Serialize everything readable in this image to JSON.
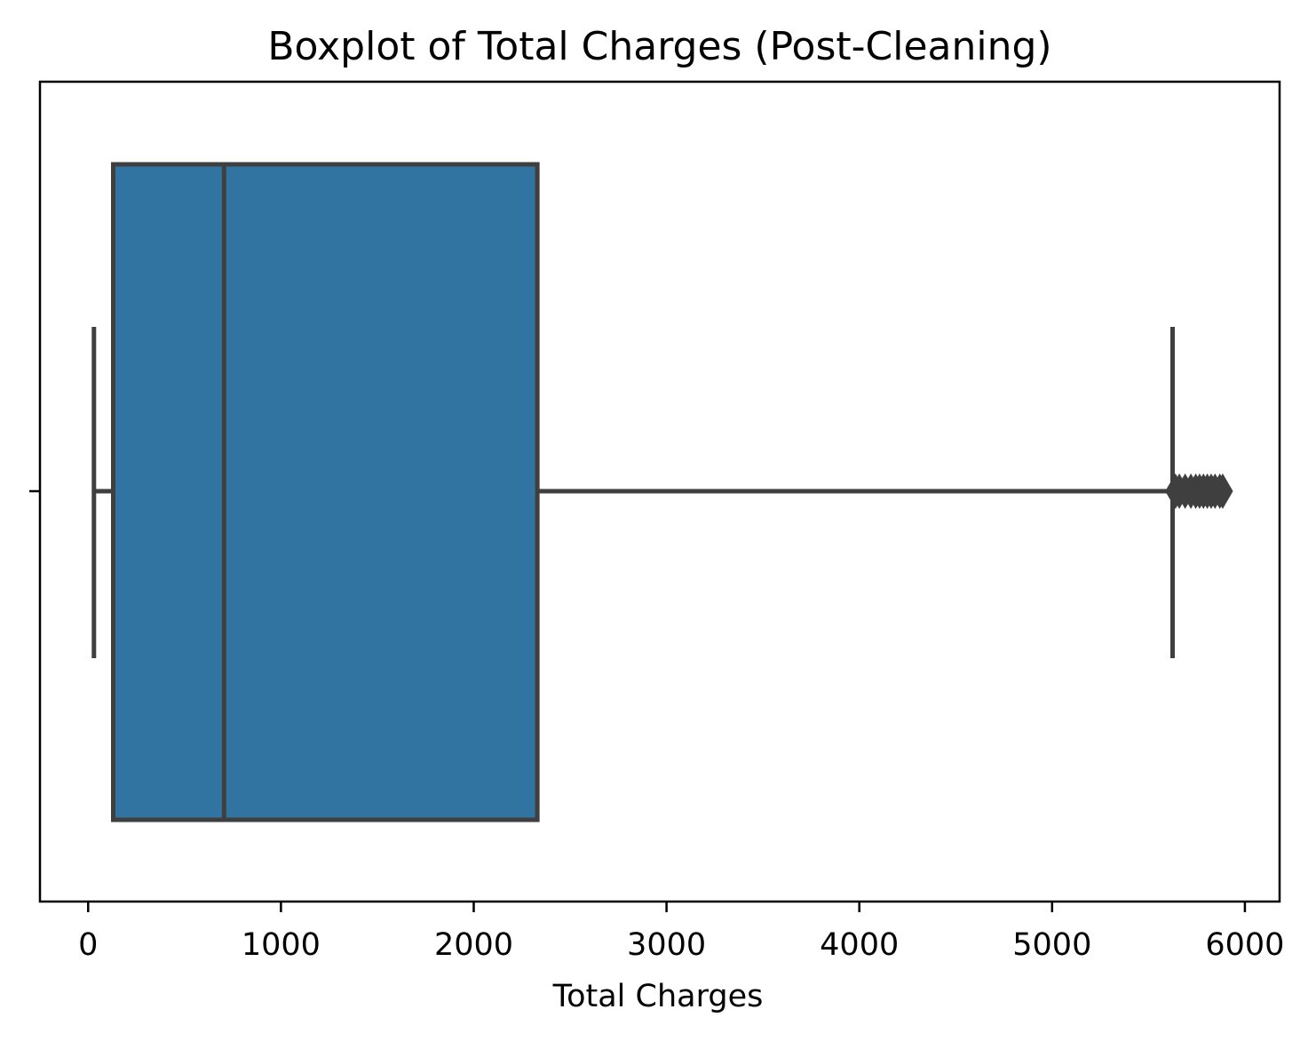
{
  "chart_data": {
    "type": "boxplot",
    "title": "Boxplot of Total Charges (Post-Cleaning)",
    "xlabel": "Total Charges",
    "ylabel": "",
    "orientation": "horizontal",
    "xlim": [
      -250,
      6180
    ],
    "x_ticks": [
      0,
      1000,
      2000,
      3000,
      4000,
      5000,
      6000
    ],
    "x_tick_labels": [
      "0",
      "1000",
      "2000",
      "3000",
      "4000",
      "5000",
      "6000"
    ],
    "grid": false,
    "legend": "none",
    "box": {
      "whisker_low": 30,
      "q1": 130,
      "median": 705,
      "q3": 2330,
      "whisker_high": 5625,
      "outliers": [
        5640,
        5660,
        5690,
        5720,
        5745,
        5765,
        5785,
        5805,
        5825,
        5845,
        5870,
        5885
      ]
    },
    "colors": {
      "box_fill": "#3274a1",
      "line": "#3f3f3f",
      "axes": "#000000"
    }
  }
}
